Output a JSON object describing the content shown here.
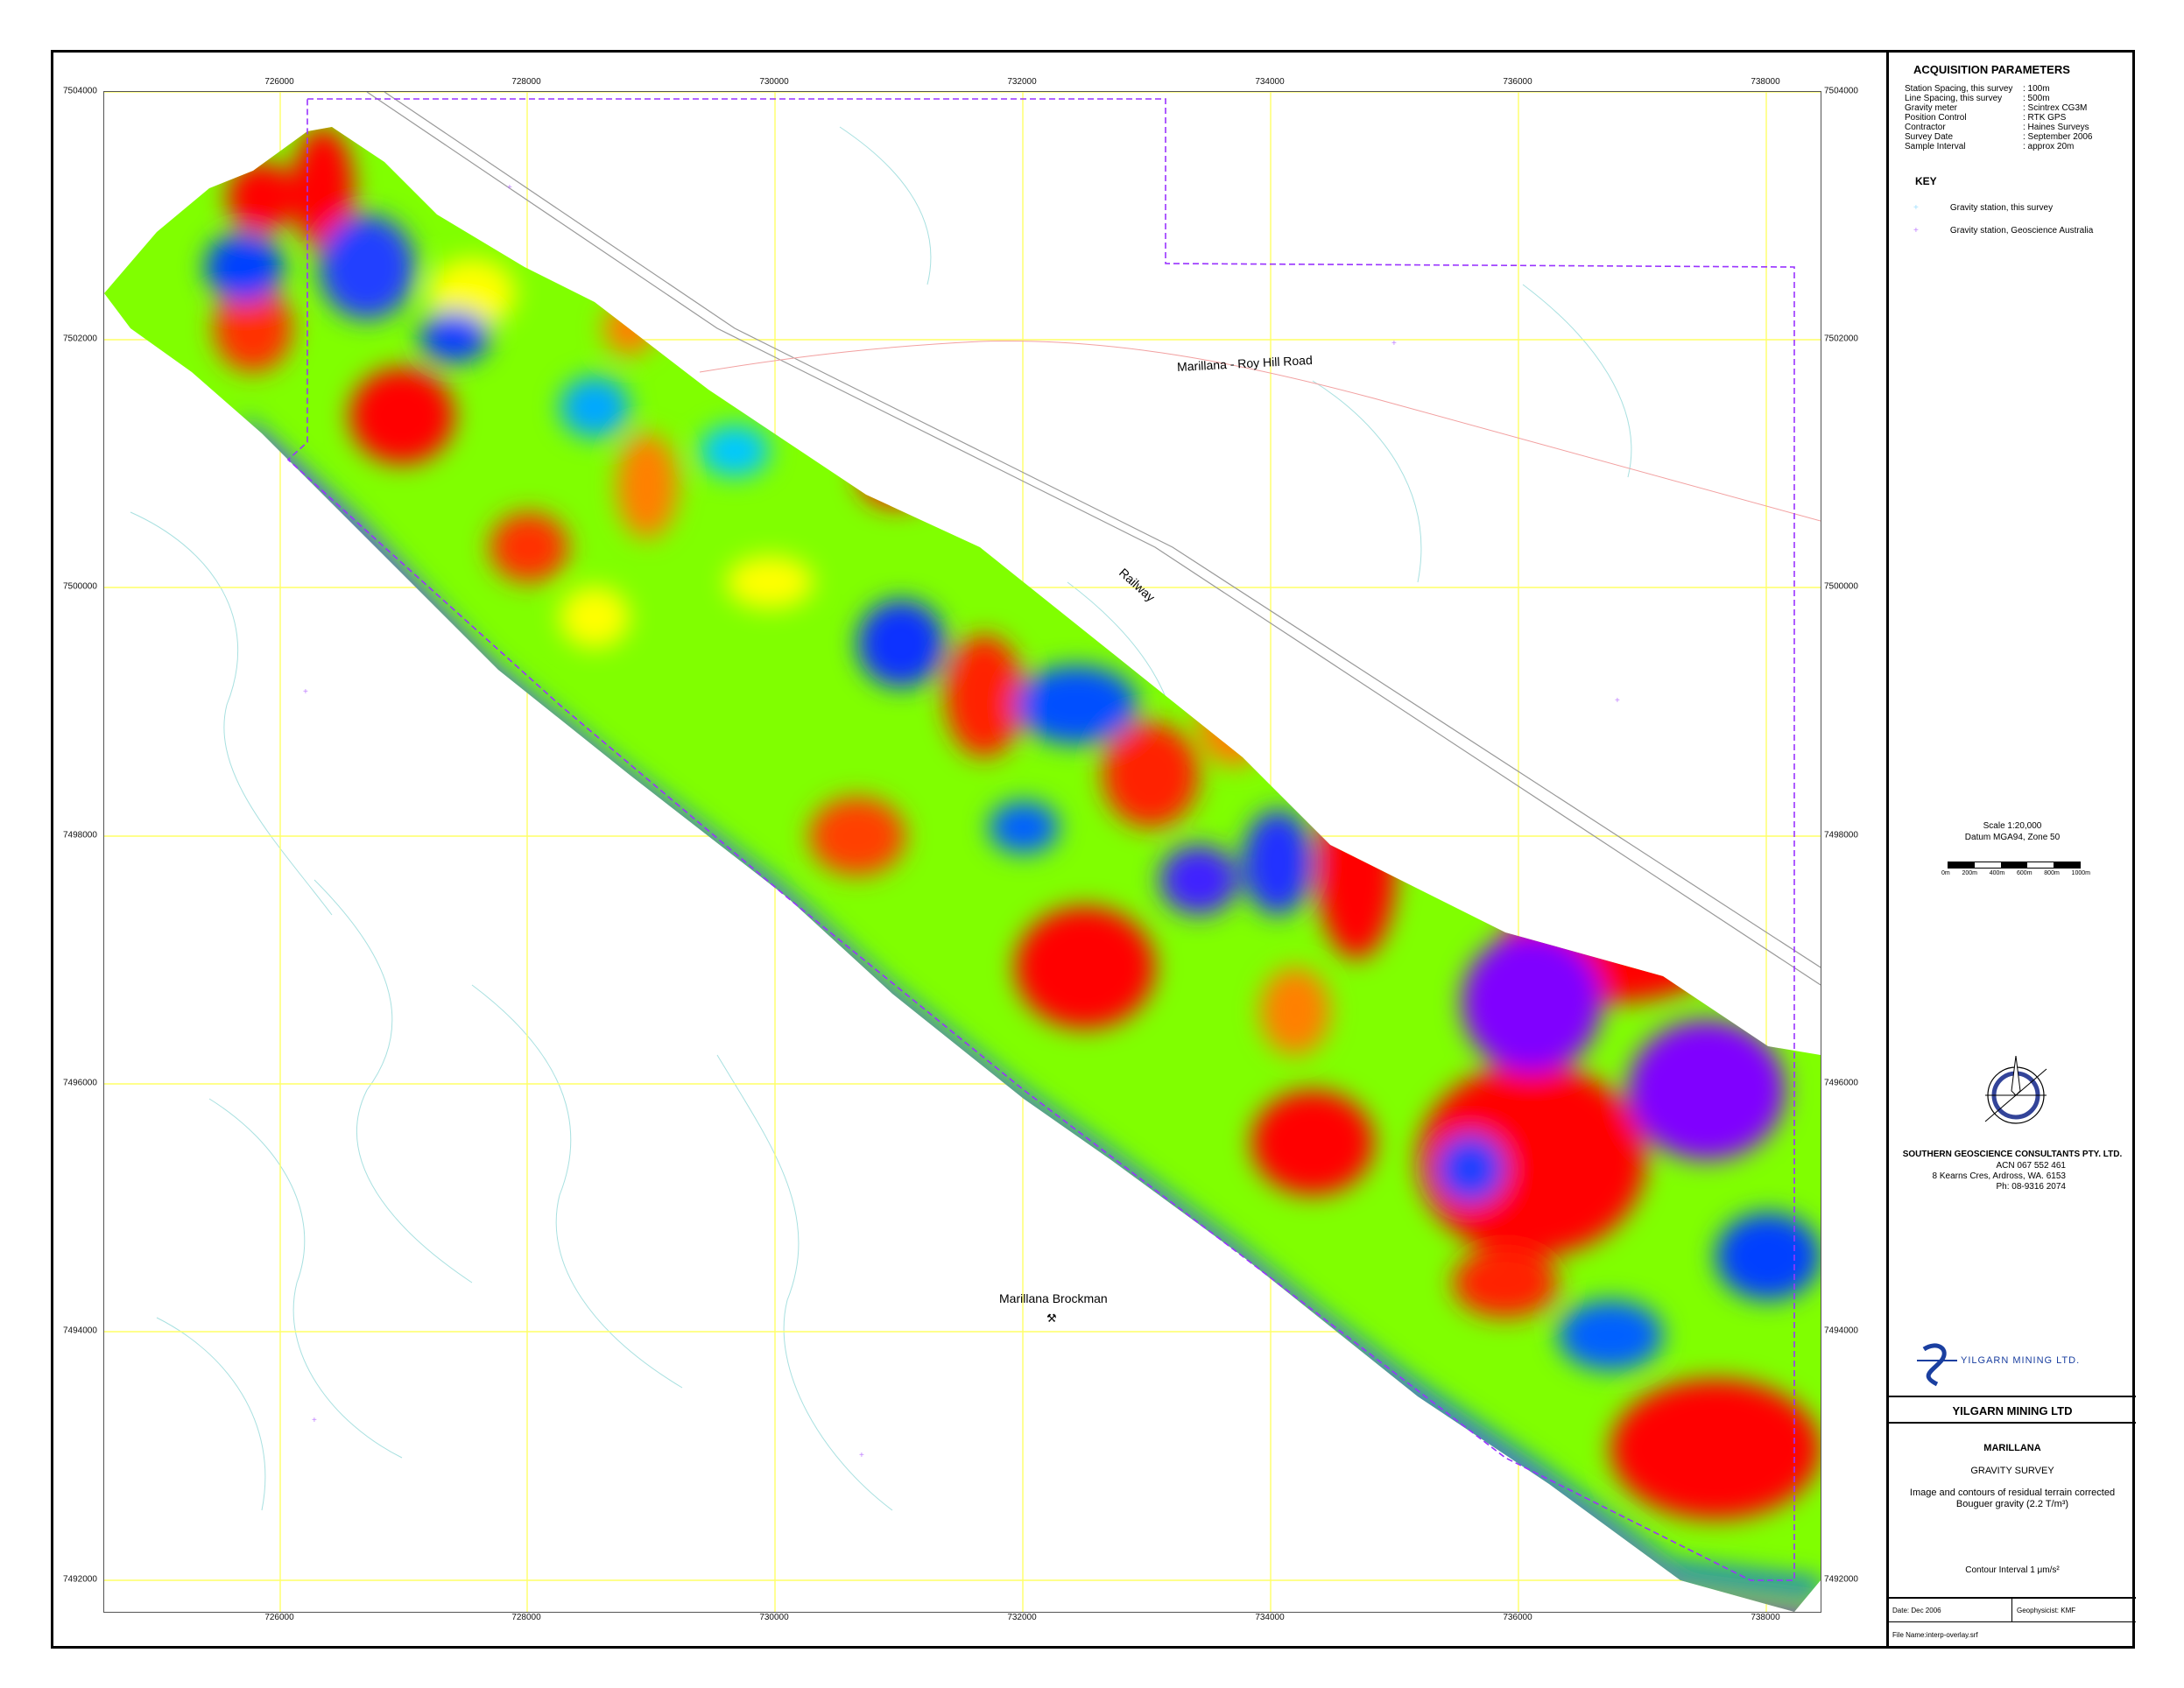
{
  "map": {
    "x_ticks": [
      "726000",
      "728000",
      "730000",
      "732000",
      "734000",
      "736000",
      "738000"
    ],
    "y_ticks": [
      "7504000",
      "7502000",
      "7500000",
      "7498000",
      "7496000",
      "7494000",
      "7492000"
    ],
    "road_label": "Marillana - Roy Hill Road",
    "railway_label": "Railway",
    "mine_label": "Marillana Brockman",
    "colors": {
      "very_high": "#ff0000",
      "high": "#ff8000",
      "mid_high": "#ffff00",
      "mid": "#80ff00",
      "mid_low": "#00e8c8",
      "low": "#0060ff",
      "very_low": "#8000ff",
      "tenement": "#9933ff",
      "grid": "#ffff66",
      "drainage": "#99dddd"
    }
  },
  "panel": {
    "acq_title": "ACQUISITION PARAMETERS",
    "params": [
      {
        "label": "Station Spacing, this survey",
        "value": ": 100m"
      },
      {
        "label": "Line Spacing, this survey",
        "value": ": 500m"
      },
      {
        "label": "Gravity meter",
        "value": ": Scintrex CG3M"
      },
      {
        "label": "Position Control",
        "value": ": RTK GPS"
      },
      {
        "label": "Contractor",
        "value": ": Haines Surveys"
      },
      {
        "label": "Survey Date",
        "value": ": September 2006"
      },
      {
        "label": "Sample Interval",
        "value": ": approx 20m"
      }
    ],
    "key_title": "KEY",
    "key_items": [
      "Gravity station, this survey",
      "Gravity station, Geoscience Australia"
    ],
    "scale": "Scale 1:20,000",
    "datum": "Datum MGA94, Zone 50",
    "scalebar_labels": [
      "0m",
      "200m",
      "400m",
      "600m",
      "800m",
      "1000m"
    ],
    "consultant_name": "SOUTHERN GEOSCIENCE CONSULTANTS PTY. LTD.",
    "consultant_acn": "ACN 067 552 461",
    "consultant_address": "8 Kearns Cres, Ardross,  WA.  6153",
    "consultant_phone": "Ph: 08-9316 2074",
    "client_logo_text": "YILGARN MINING LTD.",
    "client_title": "YILGARN MINING LTD",
    "project": "MARILLANA",
    "survey": "GRAVITY SURVEY",
    "desc1": "Image and contours of residual terrain corrected",
    "desc2": "Bouguer gravity (2.2 T/m³)",
    "contour_interval": "Contour Interval 1 μm/s²",
    "date": "Date: Dec 2006",
    "geophysicist": "Geophysicist: KMF",
    "file_name": "File Name:interp-overlay.srf"
  }
}
